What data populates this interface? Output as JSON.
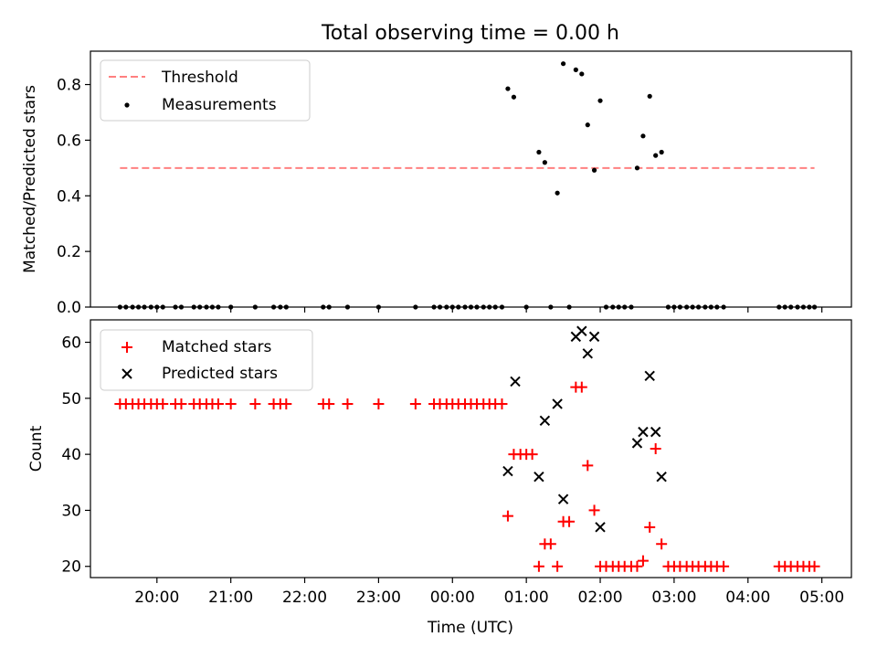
{
  "chart_data": [
    {
      "type": "scatter",
      "title": "Total observing time = 0.00 h",
      "xlabel": "",
      "ylabel": "Matched/Predicted stars",
      "ylim": [
        0.0,
        0.92
      ],
      "xlim": [
        -4.9,
        5.4
      ],
      "yticks": [
        0.0,
        0.2,
        0.4,
        0.6,
        0.8
      ],
      "ytick_labels": [
        "0.0",
        "0.2",
        "0.4",
        "0.6",
        "0.8"
      ],
      "legend_position": "top-left",
      "series": [
        {
          "name": "Threshold",
          "kind": "dashed-line",
          "color": "#ff8080",
          "x": [
            -4.5,
            4.9
          ],
          "y": [
            0.5,
            0.5
          ]
        },
        {
          "name": "Measurements",
          "kind": "dot",
          "color": "#000000",
          "x": [
            -4.5,
            -4.42,
            -4.33,
            -4.25,
            -4.17,
            -4.08,
            -4.0,
            -3.92,
            -3.75,
            -3.67,
            -3.5,
            -3.42,
            -3.33,
            -3.25,
            -3.17,
            -3.0,
            -2.67,
            -2.42,
            -2.33,
            -2.25,
            -1.75,
            -1.67,
            -1.42,
            -1.0,
            -0.5,
            -0.25,
            -0.17,
            -0.08,
            0.0,
            0.08,
            0.17,
            0.25,
            0.33,
            0.42,
            0.5,
            0.58,
            0.67,
            0.75,
            0.83,
            1.0,
            1.17,
            1.25,
            1.33,
            1.42,
            1.5,
            1.58,
            1.67,
            1.75,
            1.83,
            1.92,
            2.0,
            2.08,
            2.17,
            2.25,
            2.33,
            2.42,
            2.5,
            2.58,
            2.67,
            2.75,
            2.83,
            2.92,
            3.0,
            3.08,
            3.17,
            3.25,
            3.33,
            3.42,
            3.5,
            3.58,
            3.67,
            4.42,
            4.5,
            4.58,
            4.67,
            4.75,
            4.83,
            4.9
          ],
          "y": [
            0,
            0,
            0,
            0,
            0,
            0,
            0,
            0,
            0,
            0,
            0,
            0,
            0,
            0,
            0,
            0,
            0,
            0,
            0,
            0,
            0,
            0,
            0,
            0,
            0,
            0,
            0,
            0,
            0,
            0,
            0,
            0,
            0,
            0,
            0,
            0,
            0,
            0.785,
            0.755,
            0,
            0.557,
            0.52,
            0,
            0.41,
            0.875,
            0,
            0.853,
            0.838,
            0.655,
            0.492,
            0.742,
            0,
            0,
            0,
            0,
            0,
            0.5,
            0.615,
            0.758,
            0.545,
            0.557,
            0,
            0,
            0,
            0,
            0,
            0,
            0,
            0,
            0,
            0,
            0,
            0,
            0,
            0,
            0,
            0,
            0
          ]
        }
      ]
    },
    {
      "type": "scatter",
      "title": "",
      "xlabel": "Time (UTC)",
      "ylabel": "Count",
      "ylim": [
        18,
        64
      ],
      "xlim": [
        -4.9,
        5.4
      ],
      "yticks": [
        20,
        30,
        40,
        50,
        60
      ],
      "ytick_labels": [
        "20",
        "30",
        "40",
        "50",
        "60"
      ],
      "xticks": [
        -4,
        -3,
        -2,
        -1,
        0,
        1,
        2,
        3,
        4,
        5
      ],
      "xtick_labels": [
        "20:00",
        "21:00",
        "22:00",
        "23:00",
        "00:00",
        "01:00",
        "02:00",
        "03:00",
        "04:00",
        "05:00"
      ],
      "legend_position": "top-left",
      "series": [
        {
          "name": "Matched stars",
          "kind": "plus",
          "color": "#ff0000",
          "x": [
            -4.5,
            -4.42,
            -4.33,
            -4.25,
            -4.17,
            -4.08,
            -4.0,
            -3.92,
            -3.75,
            -3.67,
            -3.5,
            -3.42,
            -3.33,
            -3.25,
            -3.17,
            -3.0,
            -2.67,
            -2.42,
            -2.33,
            -2.25,
            -1.75,
            -1.67,
            -1.42,
            -1.0,
            -0.5,
            -0.25,
            -0.17,
            -0.08,
            0.0,
            0.08,
            0.17,
            0.25,
            0.33,
            0.42,
            0.5,
            0.58,
            0.67,
            0.75,
            0.83,
            0.92,
            1.0,
            1.08,
            1.17,
            1.25,
            1.33,
            1.42,
            1.5,
            1.58,
            1.67,
            1.75,
            1.83,
            1.92,
            2.0,
            2.08,
            2.17,
            2.25,
            2.33,
            2.42,
            2.5,
            2.58,
            2.67,
            2.75,
            2.83,
            2.92,
            3.0,
            3.08,
            3.17,
            3.25,
            3.33,
            3.42,
            3.5,
            3.58,
            3.67,
            4.42,
            4.5,
            4.58,
            4.67,
            4.75,
            4.83,
            4.9
          ],
          "y": [
            49,
            49,
            49,
            49,
            49,
            49,
            49,
            49,
            49,
            49,
            49,
            49,
            49,
            49,
            49,
            49,
            49,
            49,
            49,
            49,
            49,
            49,
            49,
            49,
            49,
            49,
            49,
            49,
            49,
            49,
            49,
            49,
            49,
            49,
            49,
            49,
            49,
            29,
            40,
            40,
            40,
            40,
            20,
            24,
            24,
            20,
            28,
            28,
            52,
            52,
            38,
            30,
            20,
            20,
            20,
            20,
            20,
            20,
            20,
            21,
            27,
            41,
            24,
            20,
            20,
            20,
            20,
            20,
            20,
            20,
            20,
            20,
            20,
            20,
            20,
            20,
            20,
            20,
            20,
            20
          ]
        },
        {
          "name": "Predicted stars",
          "kind": "x",
          "color": "#000000",
          "x": [
            0.75,
            0.85,
            1.17,
            1.25,
            1.42,
            1.5,
            1.67,
            1.75,
            1.83,
            1.92,
            2.0,
            2.5,
            2.58,
            2.67,
            2.75,
            2.83
          ],
          "y": [
            37,
            53,
            36,
            46,
            49,
            32,
            61,
            62,
            58,
            61,
            27,
            42,
            44,
            54,
            44,
            36
          ]
        }
      ]
    }
  ]
}
